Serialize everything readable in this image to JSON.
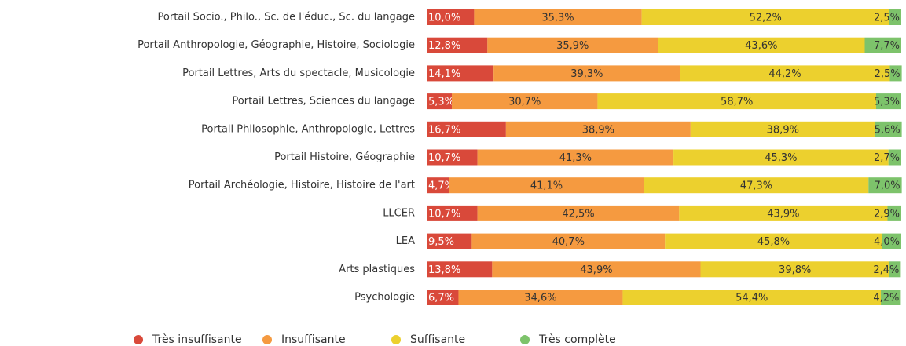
{
  "chart_data": {
    "type": "stacked_bar_horizontal",
    "categories": [
      "Portail Socio., Philo., Sc. de l'éduc., Sc. du langage",
      "Portail Anthropologie, Géographie, Histoire, Sociologie",
      "Portail Lettres, Arts du spectacle, Musicologie",
      "Portail Lettres, Sciences du langage",
      "Portail Philosophie, Anthropologie, Lettres",
      "Portail Histoire, Géographie",
      "Portail Archéologie, Histoire, Histoire de l'art",
      "LLCER",
      "LEA",
      "Arts plastiques",
      "Psychologie"
    ],
    "xlim": [
      0,
      100
    ],
    "series": [
      {
        "name": "Très insuffisante",
        "color": "#d9493a",
        "label_color": "#ffffff",
        "values": [
          10.0,
          12.8,
          14.1,
          5.3,
          16.7,
          10.7,
          4.7,
          10.7,
          9.5,
          13.8,
          6.7
        ],
        "value_labels": [
          "10,0%",
          "12,8%",
          "14,1%",
          "5,3%",
          "16,7%",
          "10,7%",
          "4,7%",
          "10,7%",
          "9,5%",
          "13,8%",
          "6,7%"
        ]
      },
      {
        "name": "Insuffisante",
        "color": "#f59a40",
        "label_color": "#333333",
        "values": [
          35.3,
          35.9,
          39.3,
          30.7,
          38.9,
          41.3,
          41.1,
          42.5,
          40.7,
          43.9,
          34.6
        ],
        "value_labels": [
          "35,3%",
          "35,9%",
          "39,3%",
          "30,7%",
          "38,9%",
          "41,3%",
          "41,1%",
          "42,5%",
          "40,7%",
          "43,9%",
          "34,6%"
        ]
      },
      {
        "name": "Suffisante",
        "color": "#ecd02e",
        "label_color": "#333333",
        "values": [
          52.2,
          43.6,
          44.2,
          58.7,
          38.9,
          45.3,
          47.3,
          43.9,
          45.8,
          39.8,
          54.4
        ],
        "value_labels": [
          "52,2%",
          "43,6%",
          "44,2%",
          "58,7%",
          "38,9%",
          "45,3%",
          "47,3%",
          "43,9%",
          "45,8%",
          "39,8%",
          "54,4%"
        ]
      },
      {
        "name": "Très complète",
        "color": "#7dc36b",
        "label_color": "#333333",
        "values": [
          2.5,
          7.7,
          2.5,
          5.3,
          5.6,
          2.7,
          7.0,
          2.9,
          4.0,
          2.4,
          4.2
        ],
        "value_labels": [
          "2,5%",
          "7,7%",
          "2,5%",
          "5,3%",
          "5,6%",
          "2,7%",
          "7,0%",
          "2,9%",
          "4,0%",
          "2,4%",
          "4,2%"
        ]
      }
    ]
  }
}
